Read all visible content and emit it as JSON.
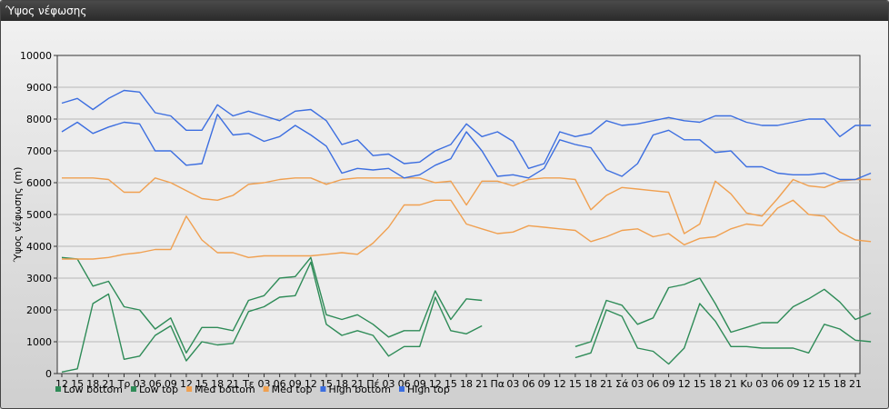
{
  "window": {
    "title": "Ύψος νέφωσης"
  },
  "chart_data": {
    "type": "line",
    "title": "",
    "ylabel": "Ύψος νέφωσης (m)",
    "xlabel": "",
    "ylim": [
      0,
      10000
    ],
    "yticks": [
      0,
      1000,
      2000,
      3000,
      4000,
      5000,
      6000,
      7000,
      8000,
      9000,
      10000
    ],
    "xtick_labels": [
      "12",
      "15",
      "18",
      "21",
      "Τρ",
      "03",
      "06",
      "09",
      "12",
      "15",
      "18",
      "21",
      "Τε",
      "03",
      "06",
      "09",
      "12",
      "15",
      "18",
      "21",
      "Πέ",
      "03",
      "06",
      "09",
      "12",
      "15",
      "18",
      "21",
      "Πα",
      "03",
      "06",
      "09",
      "12",
      "15",
      "18",
      "21",
      "Σά",
      "03",
      "06",
      "09",
      "12",
      "15",
      "18",
      "21",
      "Κυ",
      "03",
      "06",
      "09",
      "12",
      "15",
      "18",
      "21"
    ],
    "grid": true,
    "legend_position": "bottom-left",
    "colors": {
      "low": "#2e8b57",
      "med": "#f0a050",
      "high": "#3c6ee0"
    },
    "series": [
      {
        "name": "Low bottom",
        "color": "#2e8b57",
        "values": [
          50,
          150,
          2200,
          2500,
          450,
          550,
          1200,
          1500,
          400,
          1000,
          900,
          950,
          1950,
          2100,
          2400,
          2450,
          3500,
          1550,
          1200,
          1350,
          1200,
          550,
          850,
          850,
          2400,
          1350,
          1250,
          1500,
          null,
          null,
          null,
          null,
          null,
          500,
          650,
          2000,
          1800,
          800,
          700,
          300,
          800,
          2200,
          1650,
          850,
          850,
          800,
          800,
          800,
          650,
          1550,
          1400,
          1050,
          1000
        ]
      },
      {
        "name": "Low top",
        "color": "#2e8b57",
        "values": [
          3650,
          3600,
          2750,
          2900,
          2100,
          2000,
          1400,
          1750,
          650,
          1450,
          1450,
          1350,
          2300,
          2450,
          3000,
          3050,
          3650,
          1850,
          1700,
          1850,
          1550,
          1150,
          1350,
          1350,
          2600,
          1700,
          2350,
          2300,
          null,
          null,
          null,
          null,
          null,
          850,
          1000,
          2300,
          2150,
          1550,
          1750,
          2700,
          2800,
          3000,
          2200,
          1300,
          1450,
          1600,
          1600,
          2100,
          2350,
          2650,
          2250,
          1700,
          1900
        ]
      },
      {
        "name": "Med bottom",
        "color": "#f0a050",
        "values": [
          3600,
          3600,
          3600,
          3650,
          3750,
          3800,
          3900,
          3900,
          4950,
          4200,
          3800,
          3800,
          3650,
          3700,
          3700,
          3700,
          3700,
          3750,
          3800,
          3750,
          4100,
          4600,
          5300,
          5300,
          5450,
          5450,
          4700,
          4550,
          4400,
          4450,
          4650,
          4600,
          4550,
          4500,
          4150,
          4300,
          4500,
          4550,
          4300,
          4400,
          4050,
          4250,
          4300,
          4550,
          4700,
          4650,
          5200,
          5450,
          5000,
          4950,
          4450,
          4200,
          4150
        ]
      },
      {
        "name": "Med top",
        "color": "#f0a050",
        "values": [
          6150,
          6150,
          6150,
          6100,
          5700,
          5700,
          6150,
          6000,
          5750,
          5500,
          5450,
          5600,
          5950,
          6000,
          6100,
          6150,
          6150,
          5950,
          6100,
          6150,
          6150,
          6150,
          6150,
          6150,
          6000,
          6050,
          5300,
          6050,
          6050,
          5900,
          6100,
          6150,
          6150,
          6100,
          5150,
          5600,
          5850,
          5800,
          5750,
          5700,
          4400,
          4700,
          6050,
          5650,
          5050,
          4950,
          5500,
          6100,
          5900,
          5850,
          6050,
          6100,
          6100
        ]
      },
      {
        "name": "High bottom",
        "color": "#3c6ee0",
        "values": [
          7600,
          7900,
          7550,
          7750,
          7900,
          7850,
          7000,
          7000,
          6550,
          6600,
          8150,
          7500,
          7550,
          7300,
          7450,
          7800,
          7500,
          7150,
          6300,
          6450,
          6400,
          6450,
          6150,
          6250,
          6550,
          6750,
          7600,
          7000,
          6200,
          6250,
          6150,
          6450,
          7350,
          7200,
          7100,
          6400,
          6200,
          6600,
          7500,
          7650,
          7350,
          7350,
          6950,
          7000,
          6500,
          6500,
          6300,
          6250,
          6250,
          6300,
          6100,
          6100,
          6300
        ]
      },
      {
        "name": "High top",
        "color": "#3c6ee0",
        "values": [
          8500,
          8650,
          8300,
          8650,
          8900,
          8850,
          8200,
          8100,
          7650,
          7650,
          8450,
          8100,
          8250,
          8100,
          7950,
          8250,
          8300,
          7950,
          7200,
          7350,
          6850,
          6900,
          6600,
          6650,
          7000,
          7200,
          7850,
          7450,
          7600,
          7300,
          6450,
          6600,
          7600,
          7450,
          7550,
          7950,
          7800,
          7850,
          7950,
          8050,
          7950,
          7900,
          8100,
          8100,
          7900,
          7800,
          7800,
          7900,
          8000,
          8000,
          7450,
          7800,
          7800
        ]
      }
    ]
  }
}
